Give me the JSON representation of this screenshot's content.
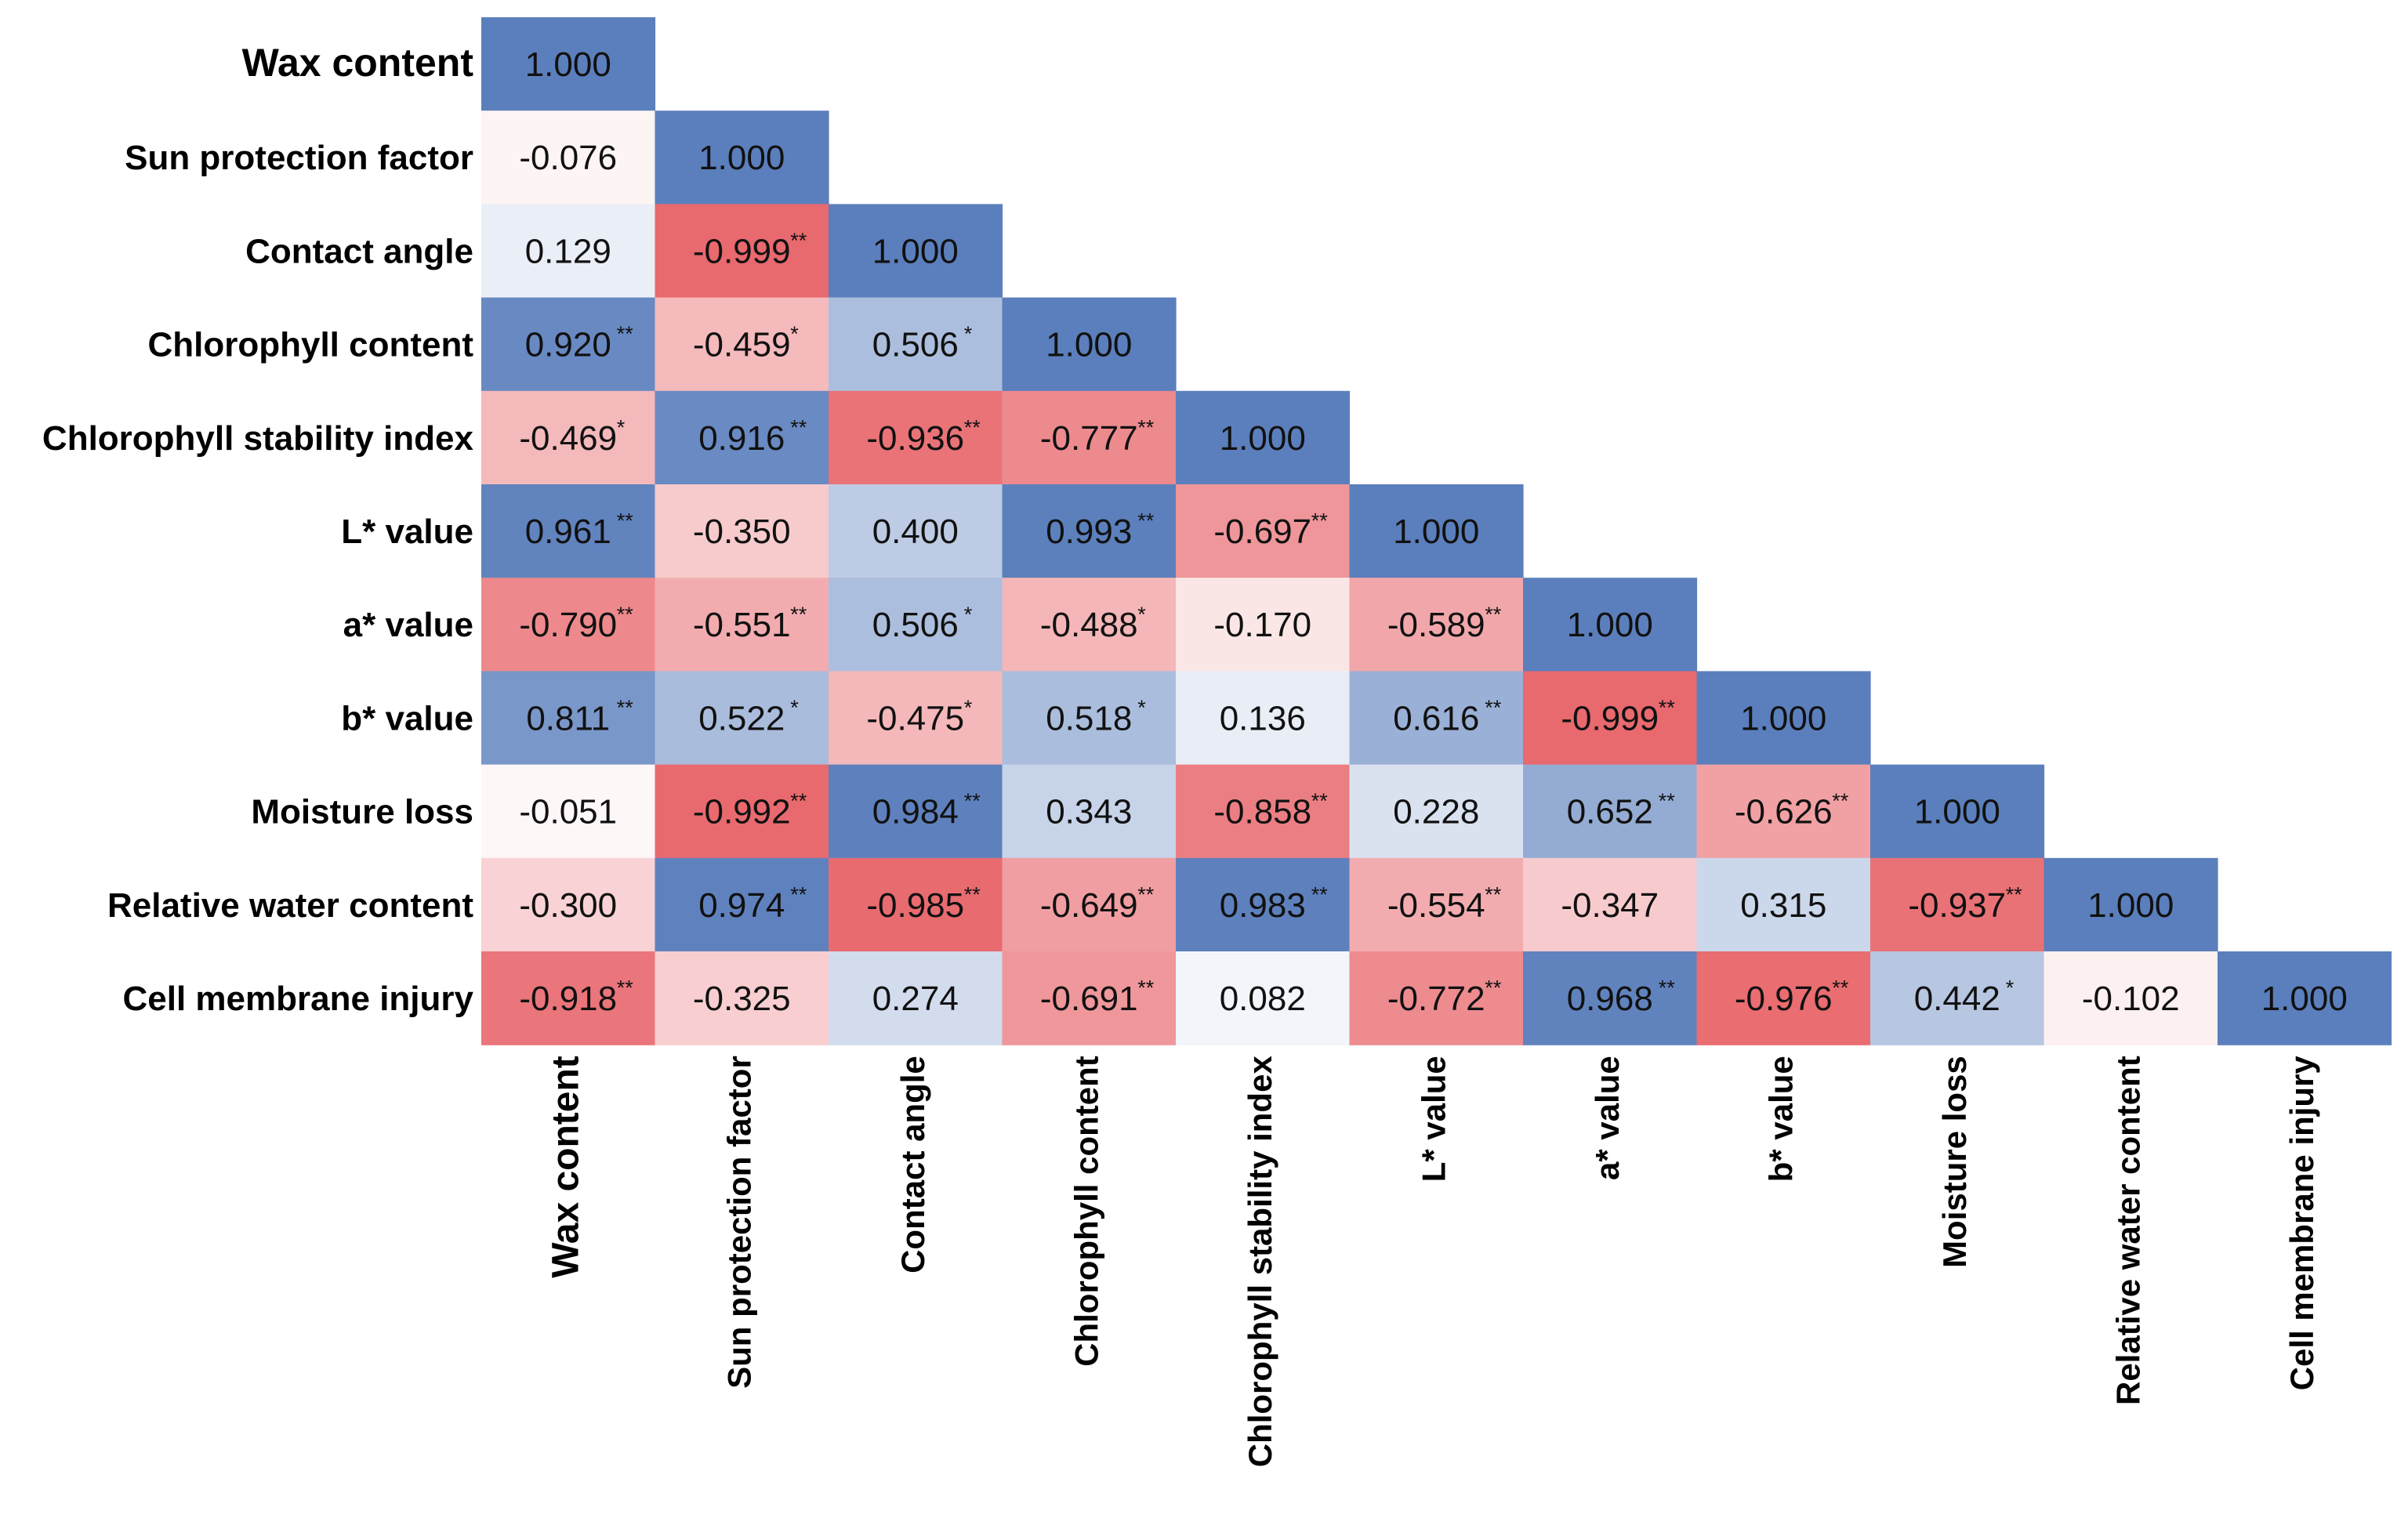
{
  "chart_data": {
    "type": "heatmap",
    "title": "",
    "variables": [
      "Wax content",
      "Sun protection factor",
      "Contact angle",
      "Chlorophyll content",
      "Chlorophyll stability index",
      "L* value",
      "a* value",
      "b* value",
      "Moisture loss",
      "Relative water content",
      "Cell membrane injury"
    ],
    "matrix": [
      [
        1.0
      ],
      [
        -0.076,
        1.0
      ],
      [
        0.129,
        -0.999,
        1.0
      ],
      [
        0.92,
        -0.459,
        0.506,
        1.0
      ],
      [
        -0.469,
        0.916,
        -0.936,
        -0.777,
        1.0
      ],
      [
        0.961,
        -0.35,
        0.4,
        0.993,
        -0.697,
        1.0
      ],
      [
        -0.79,
        -0.551,
        0.506,
        -0.488,
        -0.17,
        -0.589,
        1.0
      ],
      [
        0.811,
        0.522,
        -0.475,
        0.518,
        0.136,
        0.616,
        -0.999,
        1.0
      ],
      [
        -0.051,
        -0.992,
        0.984,
        0.343,
        -0.858,
        0.228,
        0.652,
        -0.626,
        1.0
      ],
      [
        -0.3,
        0.974,
        -0.985,
        -0.649,
        0.983,
        -0.554,
        -0.347,
        0.315,
        -0.937,
        1.0
      ],
      [
        -0.918,
        -0.325,
        0.274,
        -0.691,
        0.082,
        -0.772,
        0.968,
        -0.976,
        0.442,
        -0.102,
        1.0
      ]
    ],
    "significance": [
      [
        ""
      ],
      [
        "",
        ""
      ],
      [
        "",
        "**",
        ""
      ],
      [
        "**",
        "*",
        "*",
        ""
      ],
      [
        "*",
        "**",
        "**",
        "**",
        ""
      ],
      [
        "**",
        "",
        "",
        "**",
        "**",
        ""
      ],
      [
        "**",
        "**",
        "*",
        "*",
        "",
        "**",
        ""
      ],
      [
        "**",
        "*",
        "*",
        "*",
        "",
        "**",
        "**",
        ""
      ],
      [
        "",
        "**",
        "**",
        "",
        "**",
        "",
        "**",
        "**",
        ""
      ],
      [
        "",
        "**",
        "**",
        "**",
        "**",
        "**",
        "",
        "",
        "**",
        ""
      ],
      [
        "**",
        "",
        "",
        "**",
        "",
        "**",
        "**",
        "**",
        "*",
        "",
        ""
      ]
    ],
    "color_scale": {
      "negative": "#e8696e",
      "neutral": "#ffffff",
      "positive": "#5b7fbc"
    }
  }
}
